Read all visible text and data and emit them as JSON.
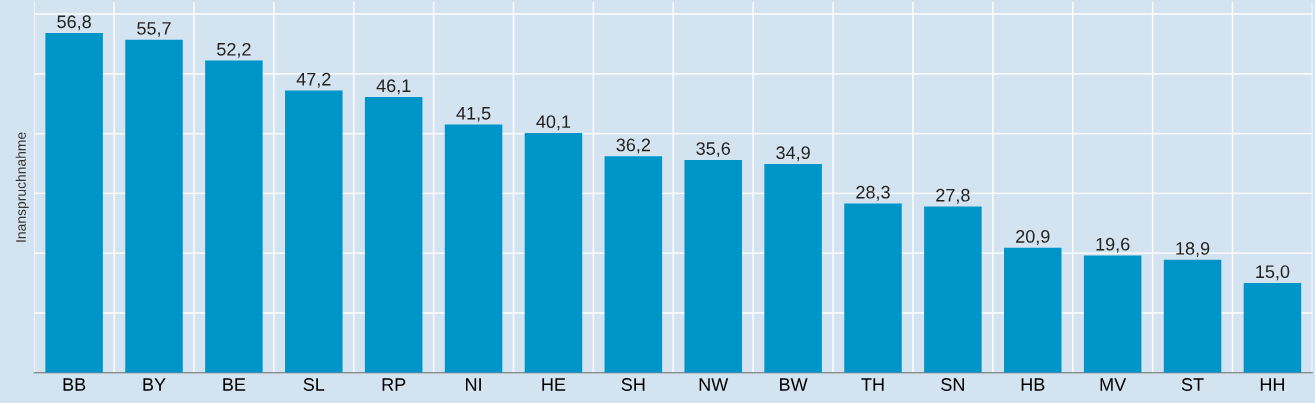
{
  "chart_data": {
    "type": "bar",
    "ylabel": "Inanspruchnahme",
    "categories": [
      "BB",
      "BY",
      "BE",
      "SL",
      "RP",
      "NI",
      "HE",
      "SH",
      "NW",
      "BW",
      "TH",
      "SN",
      "HB",
      "MV",
      "ST",
      "HH"
    ],
    "values": [
      56.8,
      55.7,
      52.2,
      47.2,
      46.1,
      41.5,
      40.1,
      36.2,
      35.6,
      34.9,
      28.3,
      27.8,
      20.9,
      19.6,
      18.9,
      15.0
    ],
    "value_labels": [
      "56,8",
      "55,7",
      "52,2",
      "47,2",
      "46,1",
      "41,5",
      "40,1",
      "36,2",
      "35,6",
      "34,9",
      "28,3",
      "27,8",
      "20,9",
      "19,6",
      "18,9",
      "15,0"
    ],
    "color": "#0095c8",
    "ylim": [
      0,
      62
    ],
    "yticks": [
      {
        "value": 0,
        "label": null
      },
      {
        "value": 10,
        "label": null
      },
      {
        "value": 20,
        "label": null
      },
      {
        "value": 30,
        "label": null
      },
      {
        "value": 40,
        "label": null
      },
      {
        "value": 50,
        "label": null
      },
      {
        "value": 60,
        "label": null
      }
    ],
    "tick_labels": "x",
    "grid": true
  }
}
